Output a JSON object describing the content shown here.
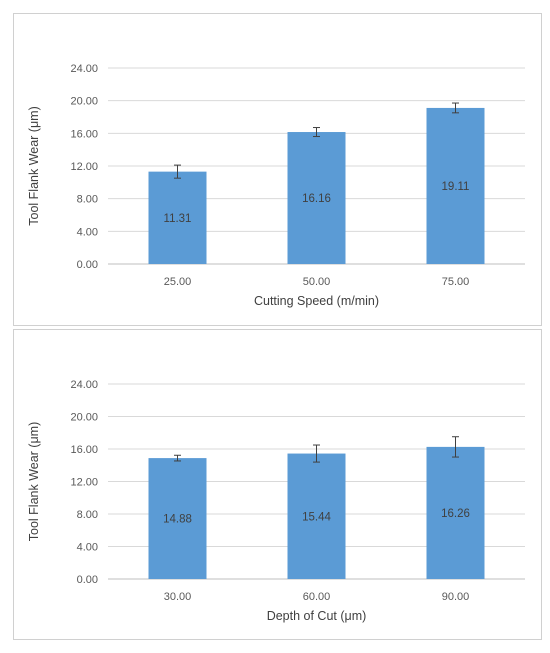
{
  "chart_data": [
    {
      "type": "bar",
      "categories": [
        "25.00",
        "50.00",
        "75.00"
      ],
      "values": [
        11.31,
        16.16,
        19.11
      ],
      "error_bars": [
        0.8,
        0.55,
        0.6
      ],
      "data_labels": [
        "11.31",
        "16.16",
        "19.11"
      ],
      "xlabel": "Cutting Speed (m/min)",
      "ylabel": "Tool Flank Wear (μm)",
      "ylim": [
        0,
        24
      ],
      "yticks": [
        "0.00",
        "4.00",
        "8.00",
        "12.00",
        "16.00",
        "20.00",
        "24.00"
      ],
      "grid": true,
      "bar_color": "#5b9bd5"
    },
    {
      "type": "bar",
      "categories": [
        "30.00",
        "60.00",
        "90.00"
      ],
      "values": [
        14.88,
        15.44,
        16.26
      ],
      "error_bars": [
        0.35,
        1.05,
        1.25
      ],
      "data_labels": [
        "14.88",
        "15.44",
        "16.26"
      ],
      "xlabel": "Depth of Cut (μm)",
      "ylabel": "Tool Flank Wear (μm)",
      "ylim": [
        0,
        24
      ],
      "yticks": [
        "0.00",
        "4.00",
        "8.00",
        "12.00",
        "16.00",
        "20.00",
        "24.00"
      ],
      "grid": true,
      "bar_color": "#5b9bd5"
    }
  ]
}
